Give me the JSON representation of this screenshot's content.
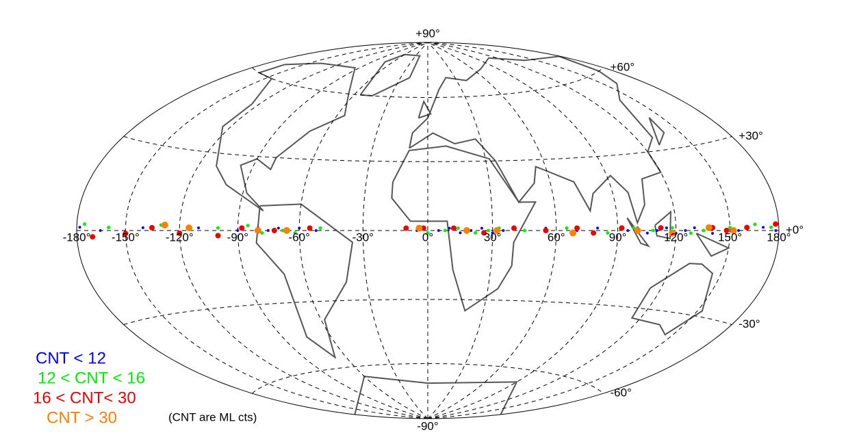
{
  "map": {
    "projection": "hammer-aitoff",
    "meridian_labels": [
      {
        "lon": -180,
        "label": "-180°"
      },
      {
        "lon": -150,
        "label": "-150°"
      },
      {
        "lon": -120,
        "label": "-120°"
      },
      {
        "lon": -90,
        "label": "-90°"
      },
      {
        "lon": -60,
        "label": "-60°"
      },
      {
        "lon": -30,
        "label": "-30°"
      },
      {
        "lon": 0,
        "label": "0°"
      },
      {
        "lon": 30,
        "label": "30°"
      },
      {
        "lon": 60,
        "label": "60°"
      },
      {
        "lon": 90,
        "label": "90°"
      },
      {
        "lon": 120,
        "label": "120°"
      },
      {
        "lon": 150,
        "label": "150°"
      },
      {
        "lon": 180,
        "label": "180°"
      }
    ],
    "parallel_labels": [
      {
        "lat": 90,
        "label": "+90°"
      },
      {
        "lat": 60,
        "label": "+60°"
      },
      {
        "lat": 30,
        "label": "+30°"
      },
      {
        "lat": 0,
        "label": "+0°"
      },
      {
        "lat": -30,
        "label": "-30°"
      },
      {
        "lat": -60,
        "label": "-60°"
      },
      {
        "lat": -90,
        "label": "-90°"
      }
    ],
    "series": [
      {
        "name": "CNT < 12",
        "color": "#0000ff",
        "points": [
          [
            -178,
            1
          ],
          [
            -165,
            0
          ],
          [
            -140,
            1
          ],
          [
            -110,
            1
          ],
          [
            -90,
            0
          ],
          [
            -80,
            1
          ],
          [
            -75,
            0
          ],
          [
            -70,
            1
          ],
          [
            -65,
            0
          ],
          [
            -60,
            1
          ],
          [
            -52,
            0
          ],
          [
            -5,
            0
          ],
          [
            5,
            0
          ],
          [
            10,
            1
          ],
          [
            15,
            -1
          ],
          [
            20,
            0
          ],
          [
            25,
            1
          ],
          [
            30,
            -1
          ],
          [
            35,
            0
          ],
          [
            55,
            1
          ],
          [
            70,
            0
          ],
          [
            80,
            1
          ],
          [
            95,
            0
          ],
          [
            100,
            1
          ],
          [
            105,
            -1
          ],
          [
            110,
            0
          ],
          [
            115,
            1
          ],
          [
            120,
            -1
          ],
          [
            125,
            0
          ],
          [
            130,
            1
          ],
          [
            140,
            -1
          ],
          [
            155,
            0
          ],
          [
            170,
            1
          ],
          [
            178,
            0
          ]
        ]
      },
      {
        "name": "12 < CNT < 16",
        "color": "#00ee00",
        "points": [
          [
            -175,
            2
          ],
          [
            -160,
            1
          ],
          [
            -130,
            2
          ],
          [
            -100,
            1
          ],
          [
            -85,
            2
          ],
          [
            -78,
            -1
          ],
          [
            -68,
            0
          ],
          [
            -62,
            -1
          ],
          [
            -50,
            1
          ],
          [
            0,
            -1
          ],
          [
            8,
            0
          ],
          [
            14,
            1
          ],
          [
            22,
            -1
          ],
          [
            28,
            0
          ],
          [
            33,
            1
          ],
          [
            45,
            0
          ],
          [
            65,
            1
          ],
          [
            85,
            -1
          ],
          [
            98,
            1
          ],
          [
            108,
            0
          ],
          [
            118,
            1
          ],
          [
            128,
            -1
          ],
          [
            135,
            0
          ],
          [
            150,
            1
          ],
          [
            165,
            2
          ],
          [
            175,
            1
          ]
        ]
      },
      {
        "name": "16 < CNT< 30",
        "color": "#ee0000",
        "points": [
          [
            -170,
            -2
          ],
          [
            -150,
            -1
          ],
          [
            -135,
            1
          ],
          [
            -120,
            -1
          ],
          [
            -100,
            -2
          ],
          [
            -88,
            1
          ],
          [
            -72,
            0
          ],
          [
            -55,
            1
          ],
          [
            -10,
            1
          ],
          [
            -2,
            1
          ],
          [
            12,
            1
          ],
          [
            26,
            -1
          ],
          [
            40,
            1
          ],
          [
            55,
            0
          ],
          [
            70,
            1
          ],
          [
            78,
            -1
          ],
          [
            92,
            1
          ],
          [
            112,
            1
          ],
          [
            140,
            1
          ],
          [
            148,
            0
          ],
          [
            160,
            1
          ],
          [
            178,
            2
          ]
        ]
      },
      {
        "name": "CNT > 30",
        "color": "#ff8000",
        "points": [
          [
            -128,
            2
          ],
          [
            -115,
            1
          ],
          [
            -80,
            0
          ],
          [
            -66,
            0
          ],
          [
            -4,
            1
          ],
          [
            18,
            0
          ],
          [
            32,
            0
          ],
          [
            68,
            -1
          ],
          [
            100,
            0
          ],
          [
            118,
            -1
          ],
          [
            138,
            1
          ],
          [
            152,
            0
          ]
        ]
      }
    ],
    "note": "(CNT are ML cts)"
  }
}
